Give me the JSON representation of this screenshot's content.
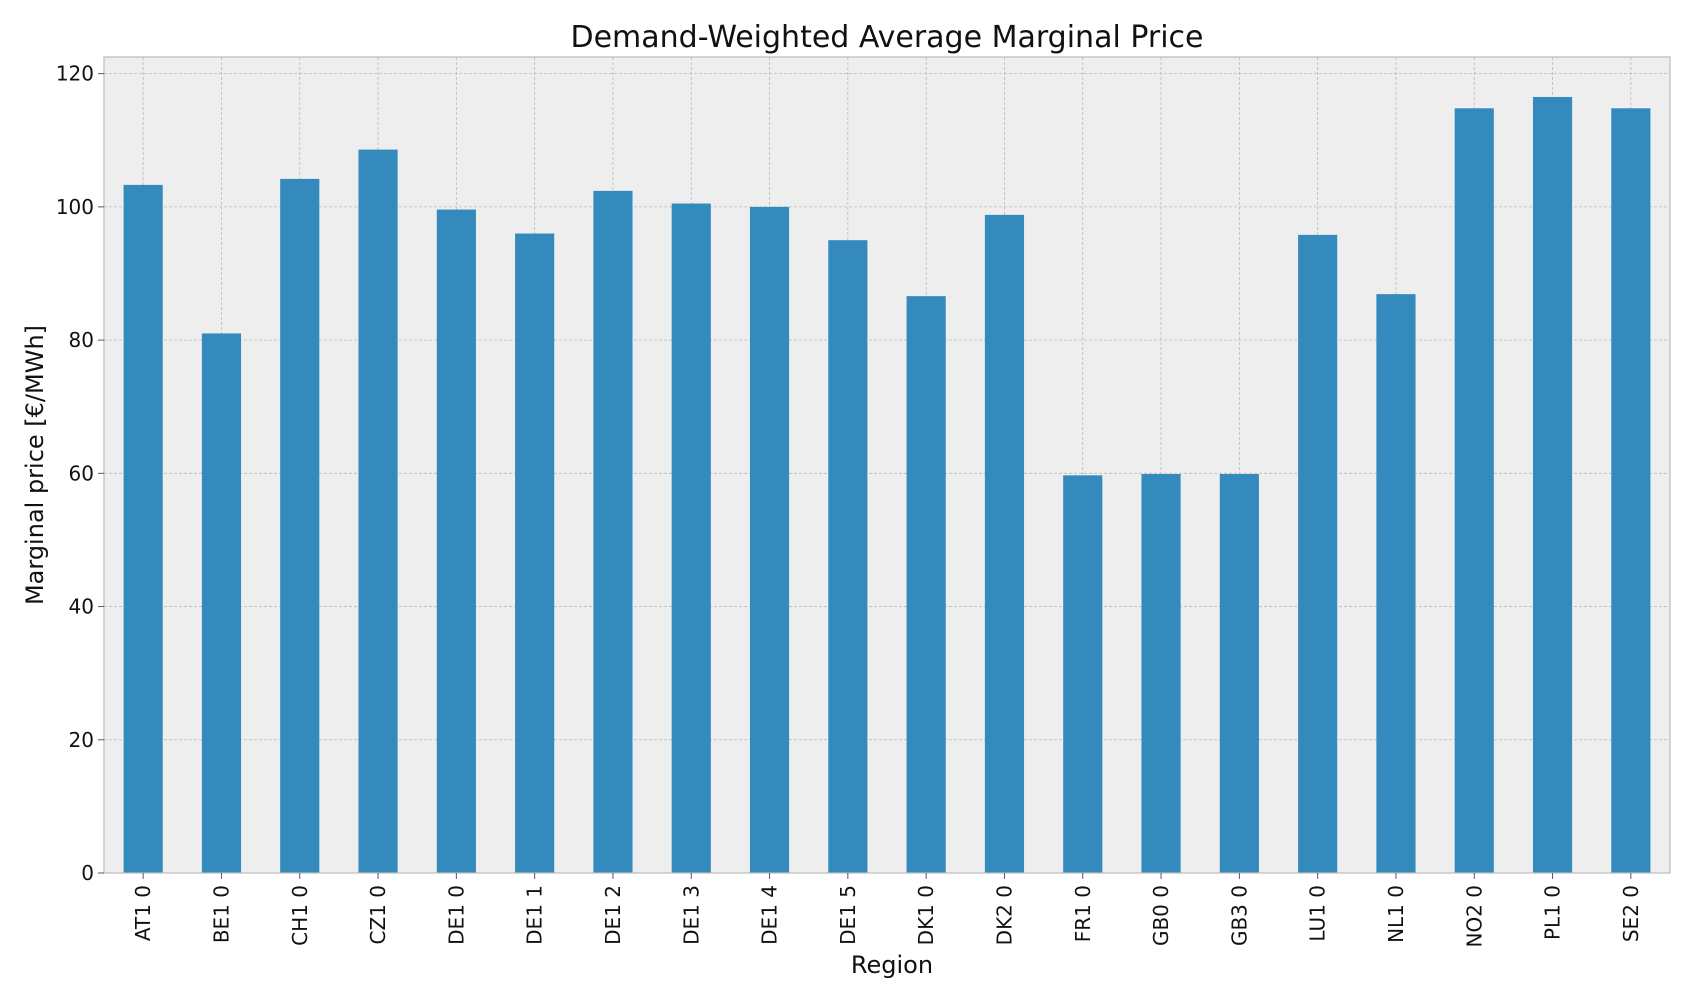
{
  "chart_data": {
    "type": "bar",
    "title": "Demand-Weighted Average Marginal Price",
    "xlabel": "Region",
    "ylabel": "Marginal price [€/MWh]",
    "ylim": [
      0,
      122.5
    ],
    "yticks": [
      0,
      20,
      40,
      60,
      80,
      100,
      120
    ],
    "grid": true,
    "categories": [
      "AT1 0",
      "BE1 0",
      "CH1 0",
      "CZ1 0",
      "DE1 0",
      "DE1 1",
      "DE1 2",
      "DE1 3",
      "DE1 4",
      "DE1 5",
      "DK1 0",
      "DK2 0",
      "FR1 0",
      "GB0 0",
      "GB3 0",
      "LU1 0",
      "NL1 0",
      "NO2 0",
      "PL1 0",
      "SE2 0"
    ],
    "values": [
      103.3,
      81.0,
      104.2,
      108.6,
      99.6,
      96.0,
      102.4,
      100.5,
      100.0,
      95.0,
      86.6,
      98.8,
      59.7,
      59.9,
      59.9,
      95.8,
      86.9,
      114.8,
      116.5,
      114.8
    ],
    "colors": {
      "bar": "#348abd",
      "plot_background": "#eeeeee"
    }
  }
}
